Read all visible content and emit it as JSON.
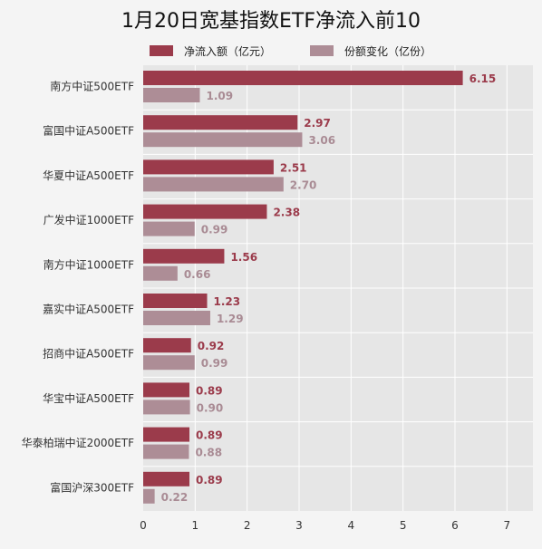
{
  "chart_data": {
    "type": "bar",
    "orientation": "horizontal",
    "title": "1月20日宽基指数ETF净流入前10",
    "categories": [
      "南方中证500ETF",
      "富国中证A500ETF",
      "华夏中证A500ETF",
      "广发中证1000ETF",
      "南方中证1000ETF",
      "嘉实中证A500ETF",
      "招商中证A500ETF",
      "华宝中证A500ETF",
      "华泰柏瑞中证2000ETF",
      "富国沪深300ETF"
    ],
    "series": [
      {
        "name": "净流入额（亿元）",
        "color": "#9b3b4b",
        "values": [
          6.15,
          2.97,
          2.51,
          2.38,
          1.56,
          1.23,
          0.92,
          0.89,
          0.89,
          0.89
        ]
      },
      {
        "name": "份额变化（亿份）",
        "color": "#ad8d96",
        "values": [
          1.09,
          3.06,
          2.7,
          0.99,
          0.66,
          1.29,
          0.99,
          0.9,
          0.88,
          0.22
        ]
      }
    ],
    "xlim": [
      0,
      7.5
    ],
    "xticks": [
      0,
      1,
      2,
      3,
      4,
      5,
      6,
      7
    ],
    "grid": true,
    "legend": "top"
  }
}
